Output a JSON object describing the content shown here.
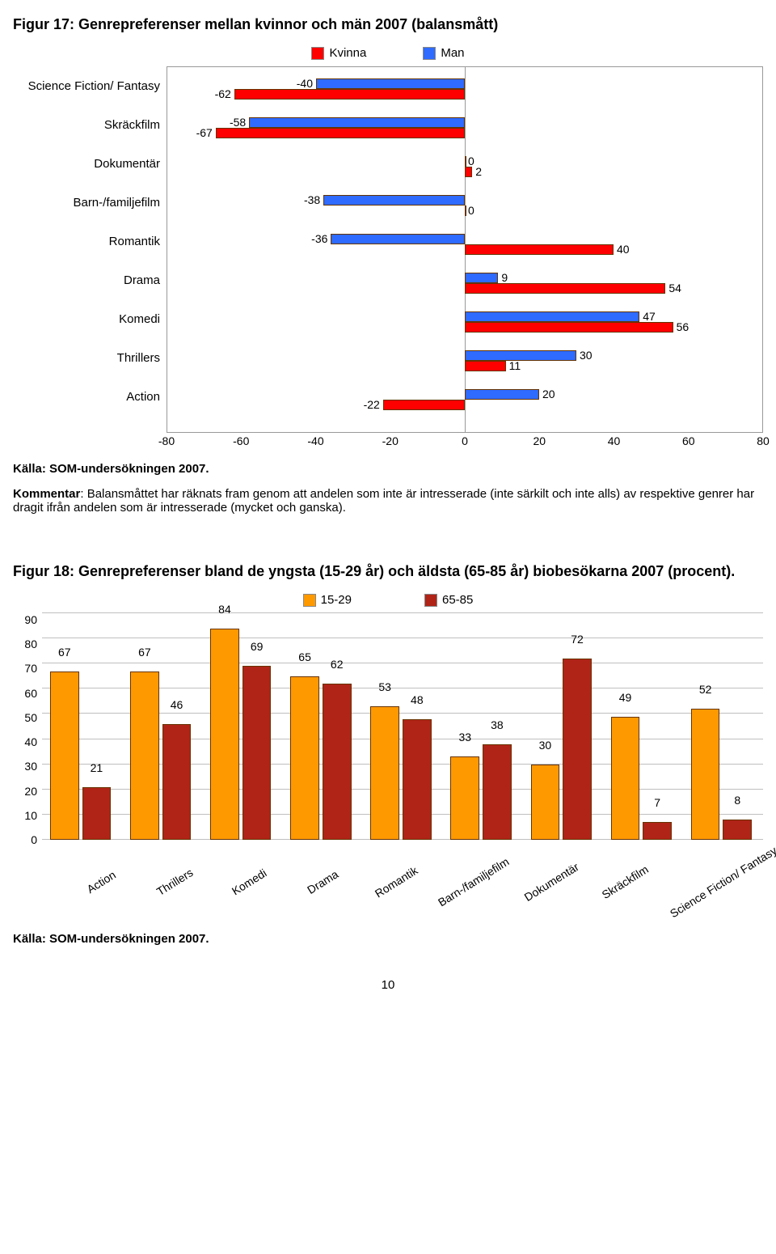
{
  "figure17": {
    "title": "Figur 17: Genrepreferenser mellan kvinnor och män 2007 (balansmått)",
    "legend": {
      "kvinna": "Kvinna",
      "man": "Man"
    },
    "colors": {
      "kvinna": "#ff0000",
      "man": "#2f6bff",
      "border": "#808080",
      "barBorder": "#663300",
      "bg": "#ffffff"
    },
    "xlim": [
      -80,
      80
    ],
    "xticks": [
      -80,
      -60,
      -40,
      -20,
      0,
      20,
      40,
      60,
      80
    ],
    "barHeight": 13,
    "rows": [
      {
        "label": "Science Fiction/ Fantasy",
        "man": -40,
        "kvinna": -62
      },
      {
        "label": "Skräckfilm",
        "man": -58,
        "kvinna": -67
      },
      {
        "label": "Dokumentär",
        "man": 0,
        "kvinna": 2
      },
      {
        "label": "Barn-/familjefilm",
        "man": -38,
        "kvinna": 0
      },
      {
        "label": "Romantik",
        "man": -36,
        "kvinna": 40
      },
      {
        "label": "Drama",
        "man": 9,
        "kvinna": 54
      },
      {
        "label": "Komedi",
        "man": 47,
        "kvinna": 56
      },
      {
        "label": "Thrillers",
        "man": 30,
        "kvinna": 11
      },
      {
        "label": "Action",
        "man": 20,
        "kvinna": -22
      }
    ],
    "source": "Källa: SOM-undersökningen 2007.",
    "kommentarLabel": "Kommentar",
    "kommentar": ": Balansmåttet har räknats fram genom att andelen som inte är intresserade (inte särkilt och inte alls) av respektive genrer har dragit ifrån andelen som är intresserade (mycket och ganska)."
  },
  "figure18": {
    "title": "Figur 18: Genrepreferenser bland de yngsta (15-29 år) och äldsta (65-85 år) biobesökarna 2007 (procent).",
    "legend": {
      "young": "15-29",
      "old": "65-85"
    },
    "colors": {
      "young": "#ff9900",
      "old": "#b02418",
      "grid": "#bfbfbf",
      "barBorder": "#663300"
    },
    "ylim": [
      0,
      90
    ],
    "ytick_step": 10,
    "groups": [
      {
        "label": "Action",
        "young": 67,
        "old": 21
      },
      {
        "label": "Thrillers",
        "young": 67,
        "old": 46
      },
      {
        "label": "Komedi",
        "young": 84,
        "old": 69
      },
      {
        "label": "Drama",
        "young": 65,
        "old": 62
      },
      {
        "label": "Romantik",
        "young": 53,
        "old": 48
      },
      {
        "label": "Barn-/familjefilm",
        "young": 33,
        "old": 38
      },
      {
        "label": "Dokumentär",
        "young": 30,
        "old": 72
      },
      {
        "label": "Skräckfilm",
        "young": 49,
        "old": 7
      },
      {
        "label": "Science Fiction/ Fantasy",
        "young": 52,
        "old": 8
      }
    ],
    "source": "Källa: SOM-undersökningen 2007."
  },
  "pageNumber": "10"
}
